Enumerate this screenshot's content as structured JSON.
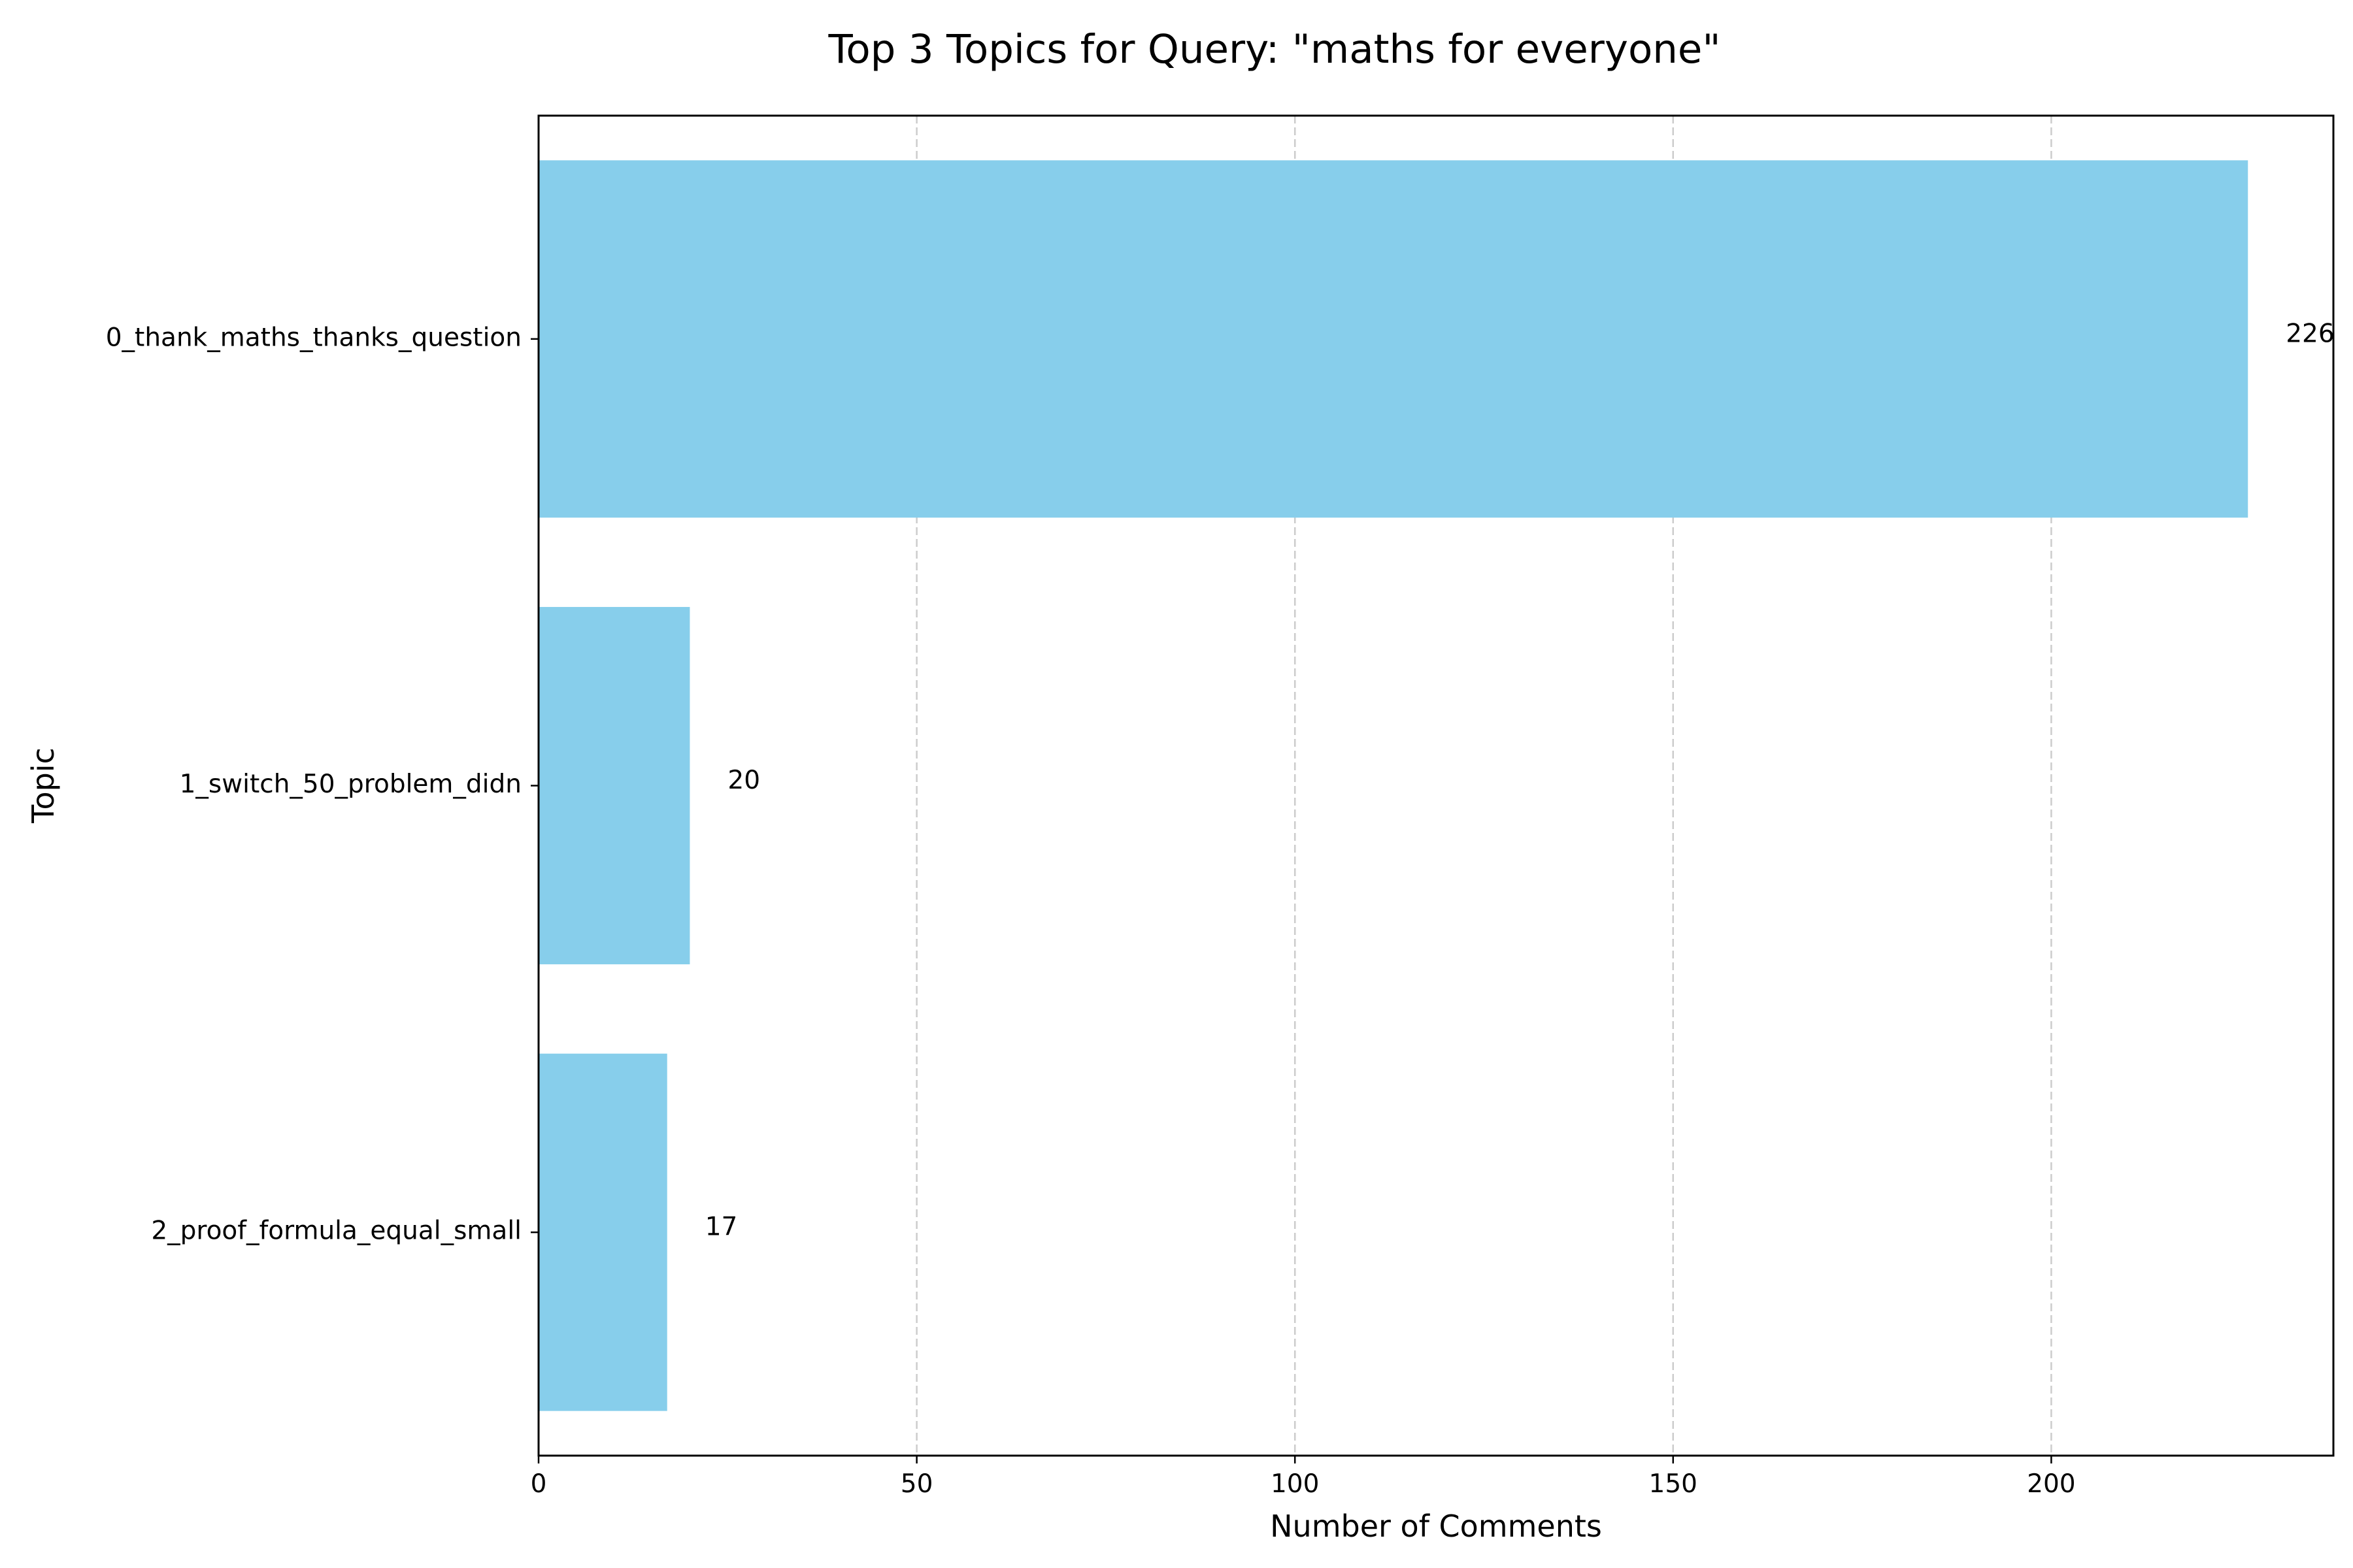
{
  "chart_data": {
    "type": "bar",
    "orientation": "horizontal",
    "title": "Top 3 Topics for Query: \"maths for everyone\"",
    "xlabel": "Number of Comments",
    "ylabel": "Topic",
    "categories": [
      "0_thank_maths_thanks_question",
      "1_switch_50_problem_didn",
      "2_proof_formula_equal_small"
    ],
    "values": [
      226,
      20,
      17
    ],
    "data_labels": [
      "226",
      "20",
      "17"
    ],
    "xlim": [
      0,
      237.3
    ],
    "xticks": [
      0,
      50,
      100,
      150,
      200
    ],
    "xtick_labels": [
      "0",
      "50",
      "100",
      "150",
      "200"
    ],
    "grid": "x-dashed",
    "colors": {
      "bar": "#87CEEB",
      "grid": "#cccccc",
      "axis": "#000000"
    }
  }
}
